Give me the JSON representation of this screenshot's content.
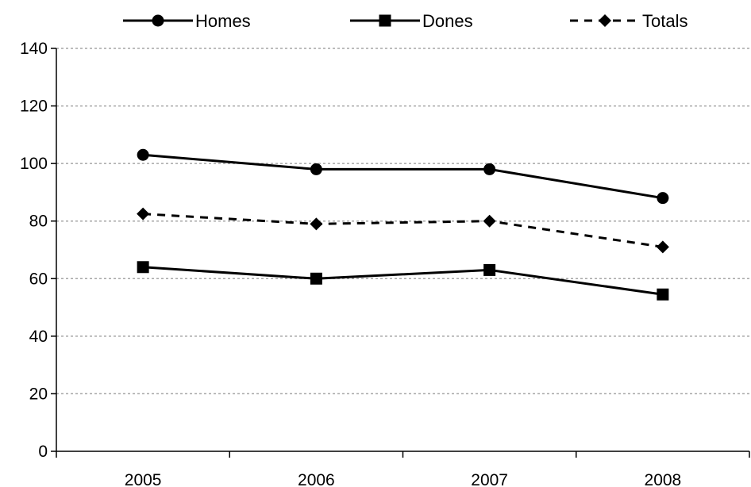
{
  "chart_data": {
    "type": "line",
    "title": "",
    "xlabel": "",
    "ylabel": "",
    "categories": [
      "2005",
      "2006",
      "2007",
      "2008"
    ],
    "ylim": [
      0,
      140
    ],
    "yticks": [
      0,
      20,
      40,
      60,
      80,
      100,
      120,
      140
    ],
    "grid": true,
    "legend_position": "top",
    "series": [
      {
        "name": "Homes",
        "values": [
          103,
          98,
          98,
          88
        ],
        "marker": "circle",
        "line": "solid",
        "color": "#000000"
      },
      {
        "name": "Dones",
        "values": [
          64,
          60,
          63,
          54.5
        ],
        "marker": "square",
        "line": "solid",
        "color": "#000000"
      },
      {
        "name": "Totals",
        "values": [
          82.5,
          79,
          80,
          71
        ],
        "marker": "diamond",
        "line": "dashed",
        "color": "#000000"
      }
    ]
  }
}
